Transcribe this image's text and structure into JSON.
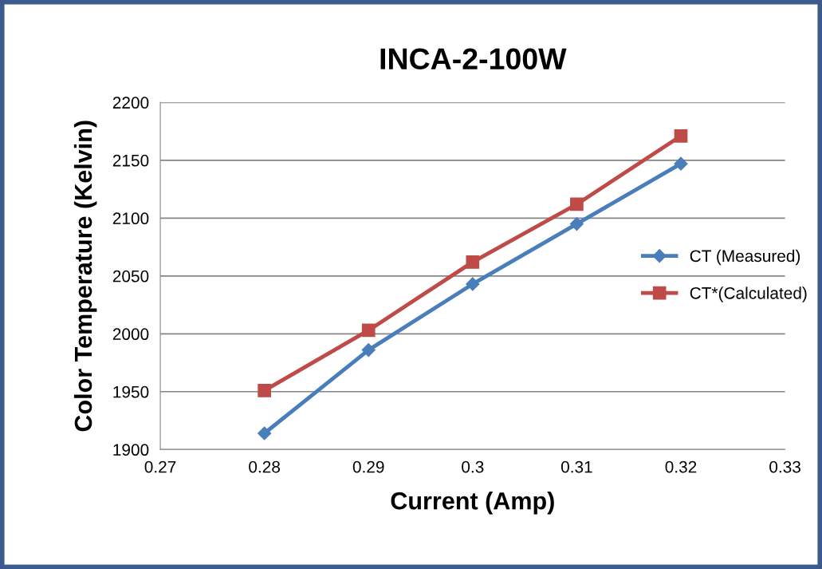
{
  "chart_data": {
    "type": "line",
    "title": "INCA-2-100W",
    "xlabel": "Current (Amp)",
    "ylabel": "Color Temperature (Kelvin)",
    "x": [
      0.28,
      0.29,
      0.3,
      0.31,
      0.32
    ],
    "series": [
      {
        "name": "CT (Measured)",
        "color": "#4a7ebb",
        "marker": "diamond",
        "values": [
          1914,
          1986,
          2043,
          2095,
          2147
        ]
      },
      {
        "name": "CT*(Calculated)",
        "color": "#be4b48",
        "marker": "square",
        "values": [
          1951,
          2003,
          2062,
          2112,
          2171
        ]
      }
    ],
    "xlim": [
      0.27,
      0.33
    ],
    "xticks": [
      0.27,
      0.28,
      0.29,
      0.3,
      0.31,
      0.32,
      0.33
    ],
    "ylim": [
      1900,
      2200
    ],
    "yticks": [
      1900,
      1950,
      2000,
      2050,
      2100,
      2150,
      2200
    ],
    "grid": "y",
    "legend": "right",
    "line_style": "solid"
  }
}
